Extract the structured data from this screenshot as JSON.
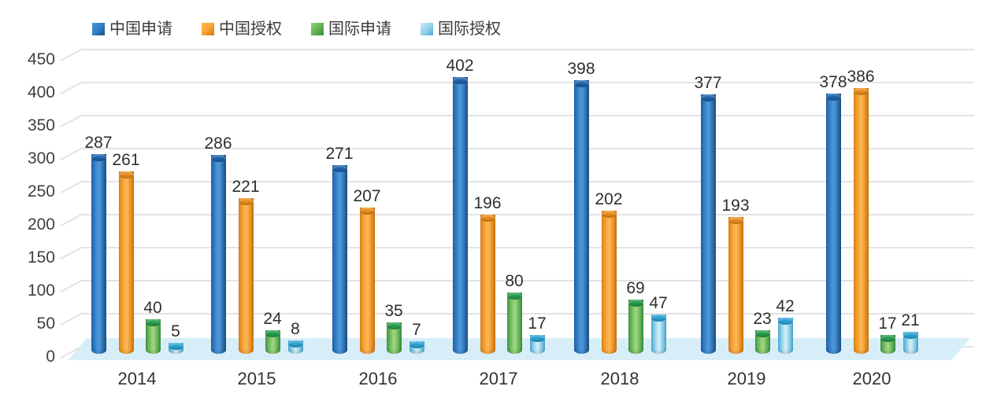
{
  "chart_data": {
    "type": "bar",
    "title": "",
    "xlabel": "",
    "ylabel": "",
    "categories": [
      "2014",
      "2015",
      "2016",
      "2017",
      "2018",
      "2019",
      "2020"
    ],
    "series": [
      {
        "name": "中国申请",
        "values": [
          287,
          286,
          271,
          402,
          398,
          377,
          378
        ],
        "color": "#2e7cc4",
        "colors": {
          "body_left": "#1d63a8",
          "body_mid": "#4b96db",
          "body_right": "#174f82",
          "cap": "#2063a8"
        }
      },
      {
        "name": "中国授权",
        "values": [
          261,
          221,
          207,
          196,
          202,
          193,
          386
        ],
        "color": "#f7a133",
        "colors": {
          "body_left": "#e08414",
          "body_mid": "#ffb54f",
          "body_right": "#cf7208",
          "cap": "#ea8c1c"
        }
      },
      {
        "name": "国际申请",
        "values": [
          40,
          24,
          35,
          80,
          69,
          23,
          17
        ],
        "color": "#5fae4c",
        "colors": {
          "body_left": "#3f9a42",
          "body_mid": "#9bd47b",
          "body_right": "#35903a",
          "cap": "#269c4d"
        }
      },
      {
        "name": "国际授权",
        "values": [
          5,
          8,
          7,
          17,
          47,
          42,
          21
        ],
        "color": "#8fd0e8",
        "colors": {
          "body_left": "#4aaed8",
          "body_mid": "#cdecf8",
          "body_right": "#45a8d2",
          "cap": "#2ba3d5"
        }
      }
    ],
    "ylim": [
      0,
      450
    ],
    "ytick_step": 50,
    "yticks": [
      450,
      400,
      350,
      300,
      250,
      200,
      150,
      100,
      50,
      0
    ],
    "grid": true,
    "legend_position": "top",
    "bar_style": "3d-cylinder",
    "floor_color": "#d7eef8",
    "grid_color": "#e3e3e3",
    "value_label_color": "#2f2f2f",
    "axis_label_color": "#3f3f3f"
  }
}
